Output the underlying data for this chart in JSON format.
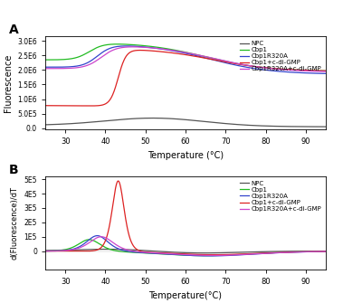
{
  "title_A": "A",
  "title_B": "B",
  "xlabel_A": "Temperature (°C)",
  "xlabel_B": "Temperature(°C)",
  "ylabel_A": "Fluorescence",
  "ylabel_B": "d(Fluorescence)/dT",
  "legend_labels": [
    "NPC",
    "Cbp1",
    "Cbp1R320A",
    "Cbp1+c-di-GMP",
    "Cbp1R320A+c-di-GMP"
  ],
  "colors": [
    "#555555",
    "#22bb22",
    "#3344cc",
    "#dd2222",
    "#cc44cc"
  ],
  "xmin": 25,
  "xmax": 95,
  "A_yticks": [
    0.0,
    500000.0,
    1000000.0,
    1500000.0,
    2000000.0,
    2500000.0,
    3000000.0
  ],
  "A_yticklabels": [
    "0.0",
    "5.0E5",
    "1.0E6",
    "1.5E6",
    "2.0E6",
    "2.5E6",
    "3.0E6"
  ],
  "B_yticks": [
    0,
    100000.0,
    200000.0,
    300000.0,
    400000.0,
    500000.0
  ],
  "B_yticklabels": [
    "0",
    "1E5",
    "2E5",
    "3E5",
    "4E5",
    "5E5"
  ],
  "xticks": [
    30,
    40,
    50,
    60,
    70,
    80,
    90
  ]
}
